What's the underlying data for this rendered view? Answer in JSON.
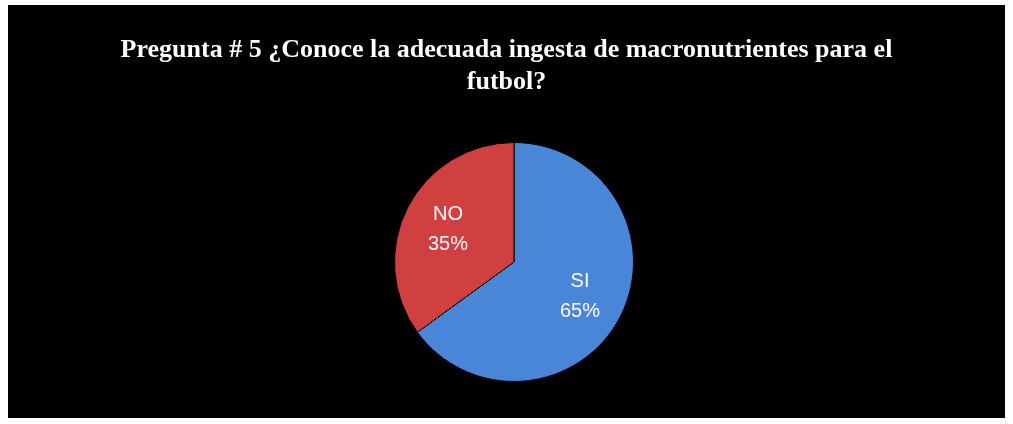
{
  "chart_data": {
    "type": "pie",
    "title": "Pregunta # 5 ¿Conoce la adecuada ingesta de macronutrientes para el futbol?",
    "categories": [
      "SI",
      "NO"
    ],
    "values": [
      65,
      35
    ],
    "value_labels": [
      "65%",
      "35%"
    ],
    "colors": [
      "#4a86d8",
      "#d04040"
    ],
    "legend": false
  }
}
